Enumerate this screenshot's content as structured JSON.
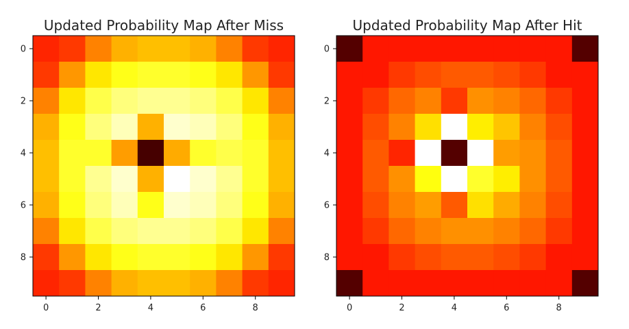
{
  "chart_data": [
    {
      "type": "heatmap",
      "title": "Updated Probability Map After Miss",
      "colormap": "hot",
      "xlabel": "",
      "ylabel": "",
      "xticks": [
        "0",
        "2",
        "4",
        "6",
        "8"
      ],
      "yticks": [
        "0",
        "2",
        "4",
        "6",
        "8"
      ],
      "xlim": [
        -0.5,
        9.5
      ],
      "ylim": [
        9.5,
        -0.5
      ],
      "value_range": [
        0,
        1
      ],
      "grid": false,
      "values": [
        [
          0.42,
          0.45,
          0.56,
          0.63,
          0.65,
          0.65,
          0.63,
          0.56,
          0.45,
          0.42
        ],
        [
          0.45,
          0.59,
          0.71,
          0.77,
          0.79,
          0.79,
          0.77,
          0.71,
          0.59,
          0.45
        ],
        [
          0.56,
          0.71,
          0.82,
          0.87,
          0.89,
          0.89,
          0.87,
          0.82,
          0.71,
          0.56
        ],
        [
          0.63,
          0.77,
          0.87,
          0.93,
          0.63,
          0.95,
          0.93,
          0.87,
          0.77,
          0.63
        ],
        [
          0.65,
          0.79,
          0.79,
          0.6,
          0.1,
          0.62,
          0.79,
          0.82,
          0.79,
          0.65
        ],
        [
          0.65,
          0.79,
          0.89,
          0.95,
          0.63,
          1.0,
          0.95,
          0.89,
          0.79,
          0.65
        ],
        [
          0.63,
          0.77,
          0.87,
          0.93,
          0.77,
          0.95,
          0.93,
          0.87,
          0.77,
          0.63
        ],
        [
          0.56,
          0.71,
          0.82,
          0.87,
          0.89,
          0.89,
          0.87,
          0.82,
          0.71,
          0.56
        ],
        [
          0.45,
          0.59,
          0.71,
          0.77,
          0.79,
          0.79,
          0.77,
          0.71,
          0.59,
          0.45
        ],
        [
          0.42,
          0.45,
          0.56,
          0.63,
          0.65,
          0.65,
          0.63,
          0.56,
          0.45,
          0.42
        ]
      ]
    },
    {
      "type": "heatmap",
      "title": "Updated Probability Map After Hit",
      "colormap": "hot",
      "xlabel": "",
      "ylabel": "",
      "xticks": [
        "0",
        "2",
        "4",
        "6",
        "8"
      ],
      "yticks": [
        "0",
        "2",
        "4",
        "6",
        "8"
      ],
      "xlim": [
        -0.5,
        9.5
      ],
      "ylim": [
        9.5,
        -0.5
      ],
      "value_range": [
        0,
        1
      ],
      "grid": false,
      "values": [
        [
          0.12,
          0.4,
          0.4,
          0.4,
          0.4,
          0.4,
          0.4,
          0.4,
          0.4,
          0.12
        ],
        [
          0.4,
          0.4,
          0.45,
          0.48,
          0.5,
          0.5,
          0.48,
          0.45,
          0.4,
          0.4
        ],
        [
          0.4,
          0.45,
          0.52,
          0.56,
          0.45,
          0.58,
          0.56,
          0.52,
          0.45,
          0.4
        ],
        [
          0.4,
          0.48,
          0.56,
          0.7,
          1.0,
          0.72,
          0.66,
          0.56,
          0.48,
          0.4
        ],
        [
          0.4,
          0.5,
          0.42,
          1.0,
          0.12,
          1.0,
          0.6,
          0.58,
          0.5,
          0.4
        ],
        [
          0.4,
          0.5,
          0.58,
          0.76,
          1.0,
          0.79,
          0.72,
          0.58,
          0.5,
          0.4
        ],
        [
          0.4,
          0.48,
          0.56,
          0.6,
          0.5,
          0.7,
          0.62,
          0.56,
          0.48,
          0.4
        ],
        [
          0.4,
          0.45,
          0.52,
          0.56,
          0.58,
          0.58,
          0.56,
          0.52,
          0.45,
          0.4
        ],
        [
          0.4,
          0.4,
          0.45,
          0.48,
          0.5,
          0.5,
          0.48,
          0.45,
          0.4,
          0.4
        ],
        [
          0.12,
          0.4,
          0.4,
          0.4,
          0.4,
          0.4,
          0.4,
          0.4,
          0.4,
          0.12
        ]
      ]
    }
  ]
}
